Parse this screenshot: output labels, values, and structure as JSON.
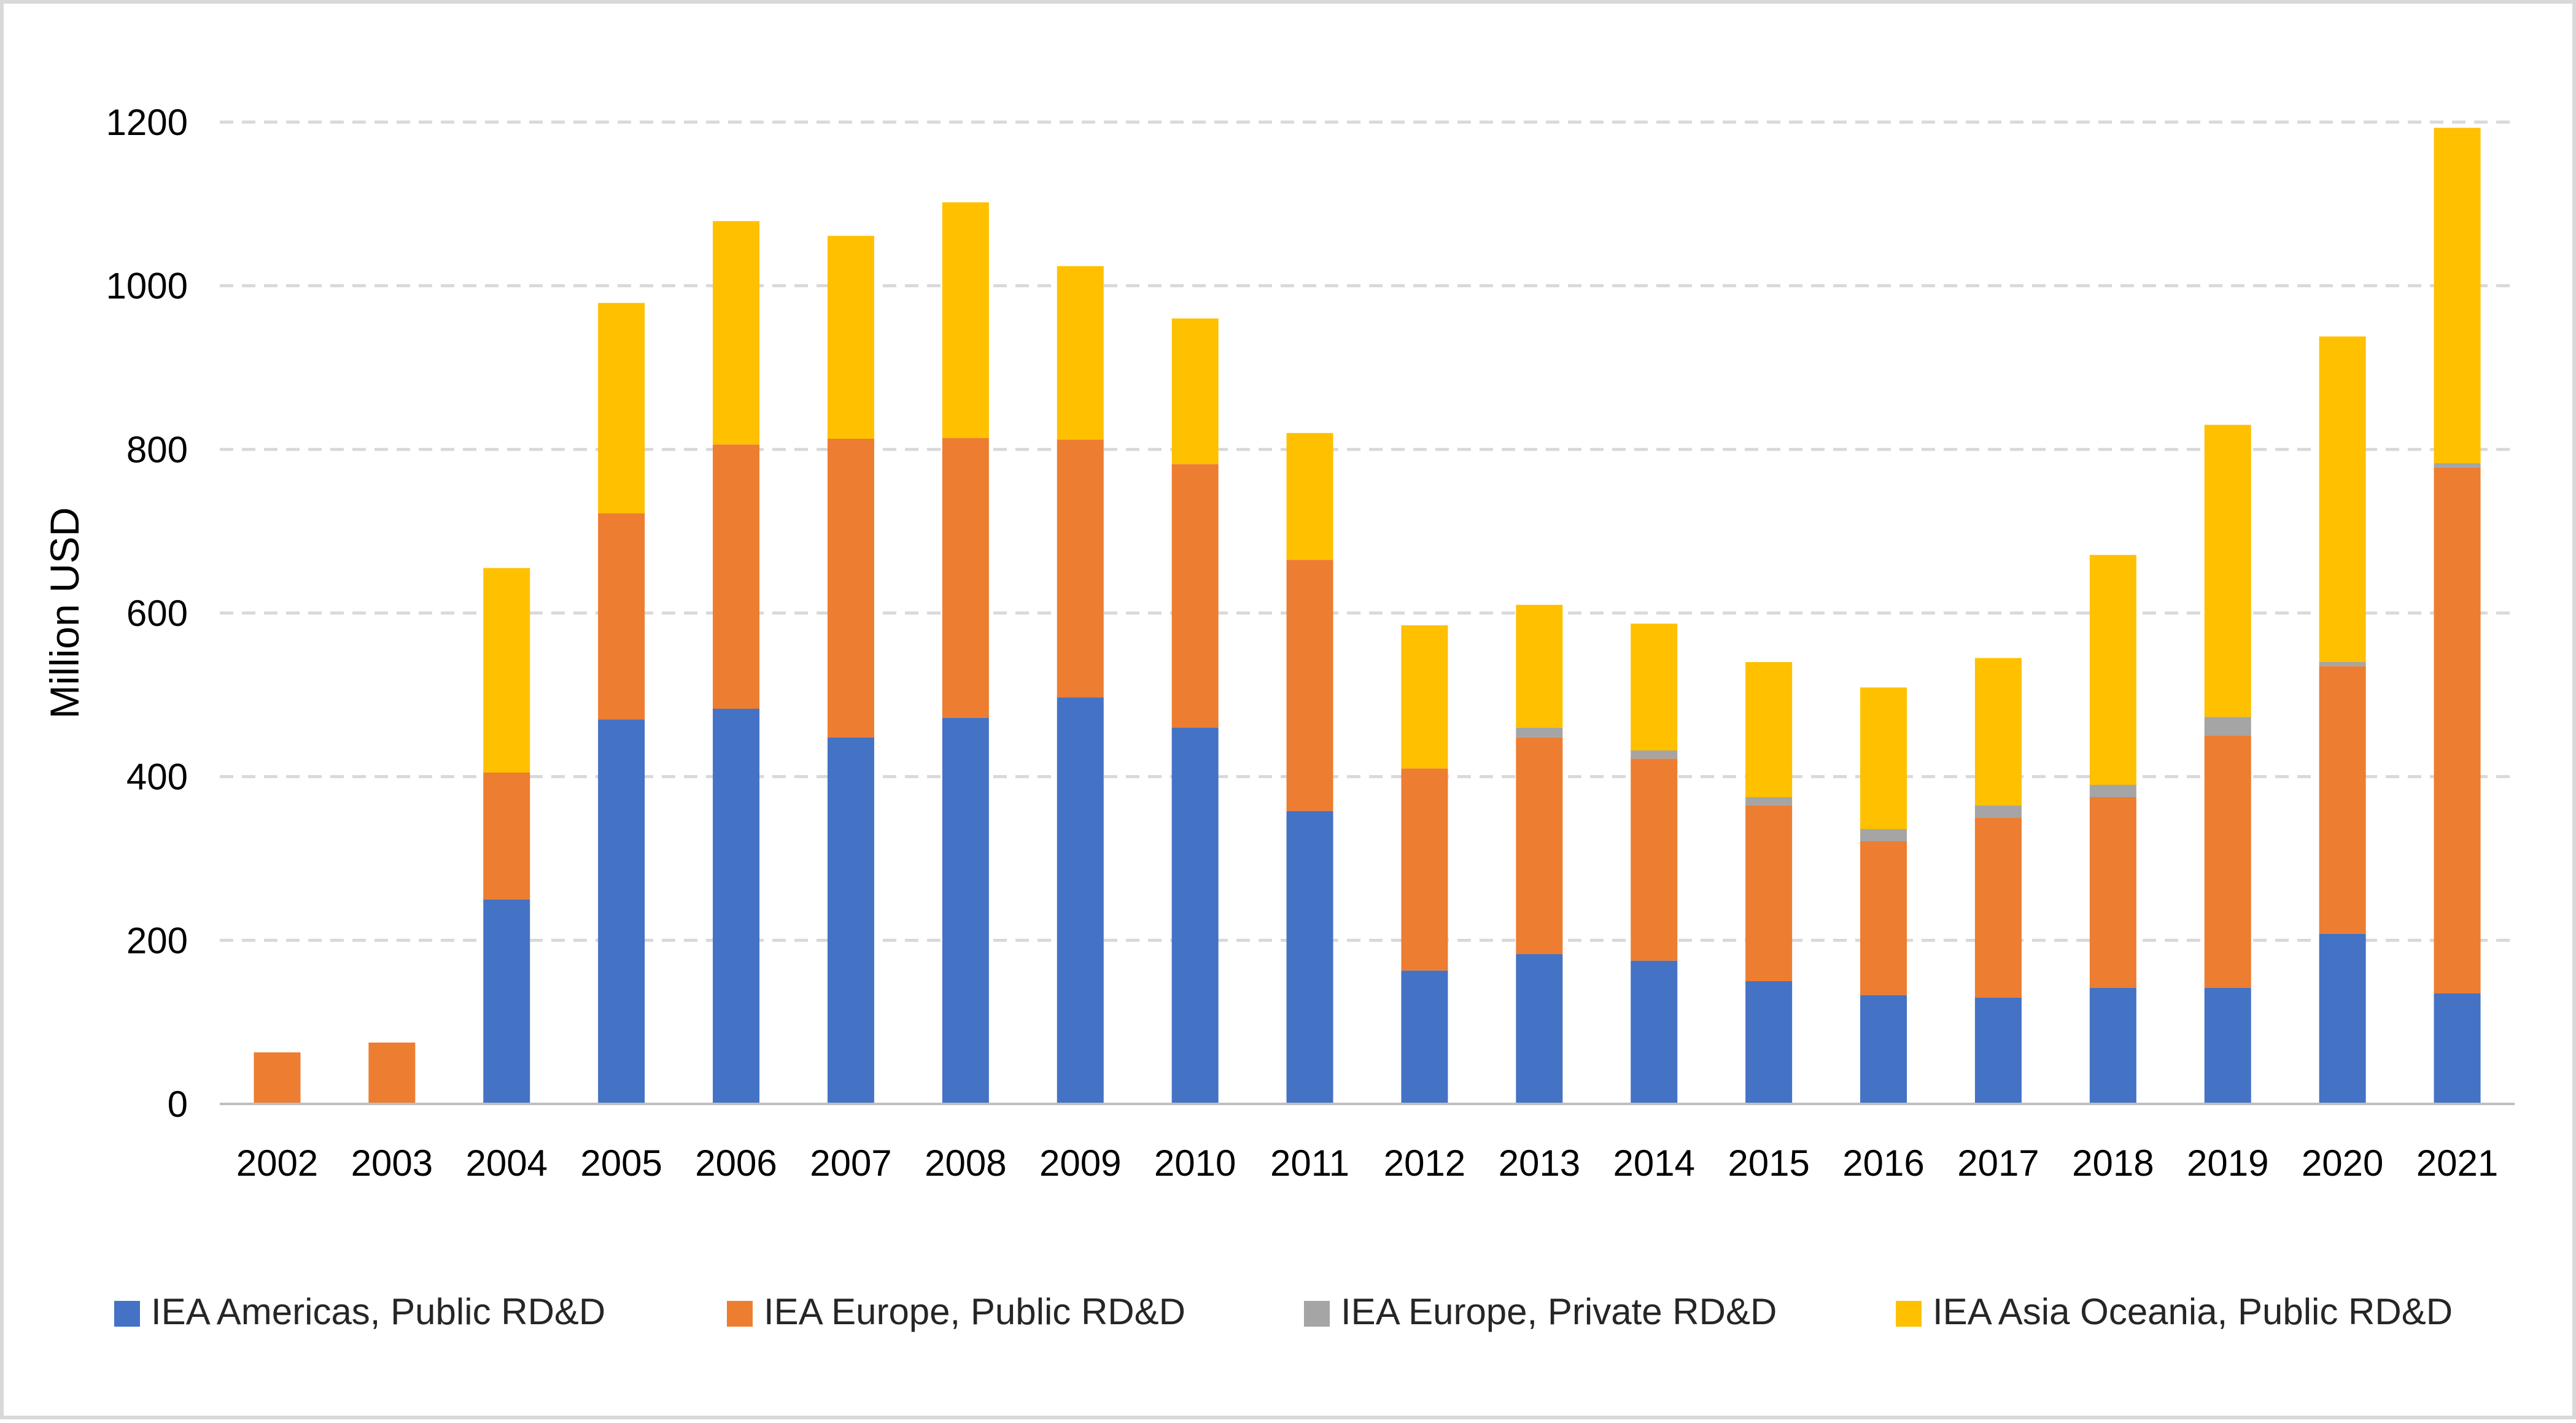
{
  "chart_data": {
    "type": "bar",
    "stacked": true,
    "title": "",
    "xlabel": "",
    "ylabel": "Million USD",
    "ylim": [
      0,
      1200
    ],
    "yticks": [
      0,
      200,
      400,
      600,
      800,
      1000,
      1200
    ],
    "grid": "horizontal dashed",
    "legend_position": "bottom",
    "categories": [
      "2002",
      "2003",
      "2004",
      "2005",
      "2006",
      "2007",
      "2008",
      "2009",
      "2010",
      "2011",
      "2012",
      "2013",
      "2014",
      "2015",
      "2016",
      "2017",
      "2018",
      "2019",
      "2020",
      "2021"
    ],
    "series": [
      {
        "name": "IEA Americas, Public RD&D",
        "color": "#4472C4",
        "values": [
          0,
          0,
          250,
          470,
          483,
          448,
          472,
          497,
          460,
          358,
          163,
          183,
          175,
          150,
          133,
          130,
          142,
          142,
          208,
          135
        ]
      },
      {
        "name": "IEA Europe, Public RD&D",
        "color": "#ED7D31",
        "values": [
          63,
          75,
          155,
          252,
          323,
          365,
          342,
          315,
          322,
          307,
          247,
          265,
          247,
          215,
          188,
          220,
          233,
          308,
          327,
          643
        ]
      },
      {
        "name": "IEA Europe, Private RD&D",
        "color": "#A5A5A5",
        "values": [
          0,
          0,
          0,
          0,
          0,
          0,
          0,
          0,
          0,
          0,
          0,
          12,
          10,
          10,
          15,
          15,
          15,
          23,
          5,
          5
        ]
      },
      {
        "name": "IEA Asia Oceania, Public RD&D",
        "color": "#FFC000",
        "values": [
          0,
          0,
          250,
          257,
          273,
          248,
          288,
          212,
          178,
          155,
          175,
          150,
          155,
          165,
          173,
          180,
          281,
          357,
          398,
          410
        ]
      }
    ]
  }
}
